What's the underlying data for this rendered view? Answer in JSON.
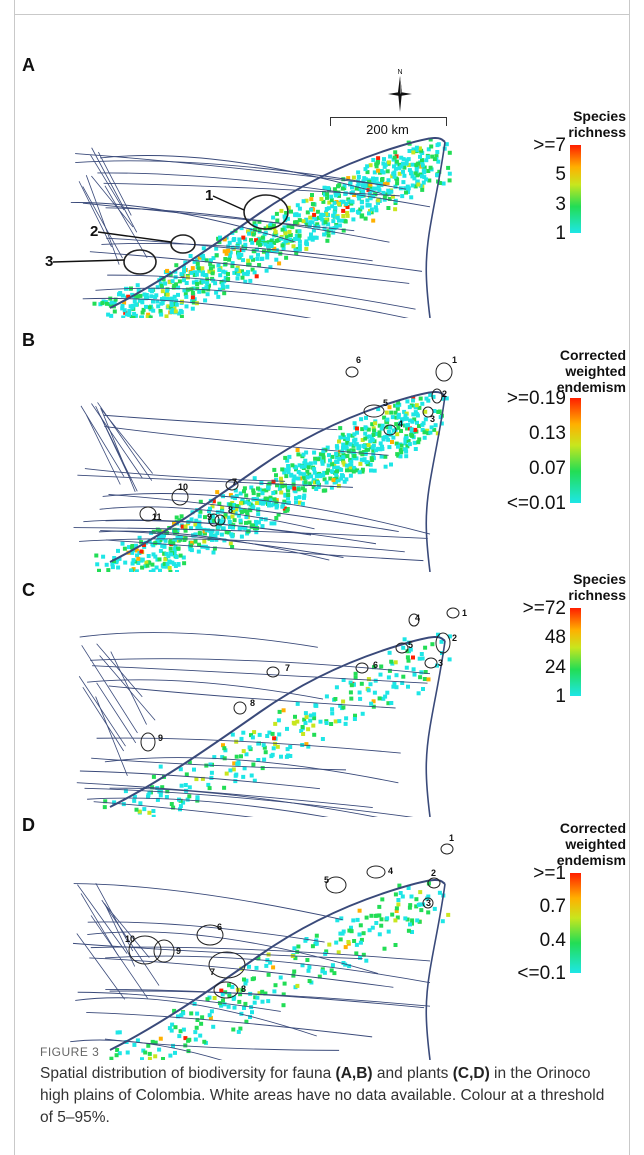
{
  "figure": {
    "label": "FIGURE 3",
    "caption_parts": [
      {
        "text": "Spatial distribution of biodiversity for fauna ",
        "bold": false
      },
      {
        "text": "(A,B)",
        "bold": true
      },
      {
        "text": " and plants ",
        "bold": false
      },
      {
        "text": "(C,D)",
        "bold": true
      },
      {
        "text": " in the Orinoco high plains of Colombia. White areas have no data available. Colour at a threshold of 5–95%.",
        "bold": false
      }
    ]
  },
  "north_arrow": {
    "label": "N"
  },
  "scale_bar": {
    "label": "200 km"
  },
  "colors": {
    "river": "#3a4a7a",
    "gradient": [
      "#1ee6e6",
      "#22dd55",
      "#c8e61e",
      "#ffb000",
      "#ff1e00"
    ],
    "frame": "#c9c9c9"
  },
  "panels": [
    {
      "letter": "A",
      "legend": {
        "title": "Species\nrichness",
        "labels": [
          ">=7",
          "5",
          "3",
          "1"
        ]
      },
      "hotspots": [
        "1",
        "2",
        "3"
      ]
    },
    {
      "letter": "B",
      "legend": {
        "title": "Corrected\nweighted\nendemism",
        "labels": [
          ">=0.19",
          "0.13",
          "0.07",
          "<=0.01"
        ]
      },
      "hotspots": [
        "1",
        "2",
        "3",
        "4",
        "5",
        "6",
        "7",
        "8",
        "9",
        "10",
        "11"
      ]
    },
    {
      "letter": "C",
      "legend": {
        "title": "Species\nrichness",
        "labels": [
          ">=72",
          "48",
          "24",
          "1"
        ]
      },
      "hotspots": [
        "1",
        "2",
        "3",
        "4",
        "5",
        "6",
        "7",
        "8",
        "9"
      ]
    },
    {
      "letter": "D",
      "legend": {
        "title": "Corrected\nweighted\nendemism",
        "labels": [
          ">=1",
          "0.7",
          "0.4",
          "<=0.1"
        ]
      },
      "hotspots": [
        "1",
        "2",
        "3",
        "4",
        "5",
        "6",
        "7",
        "8",
        "9",
        "10"
      ]
    }
  ]
}
